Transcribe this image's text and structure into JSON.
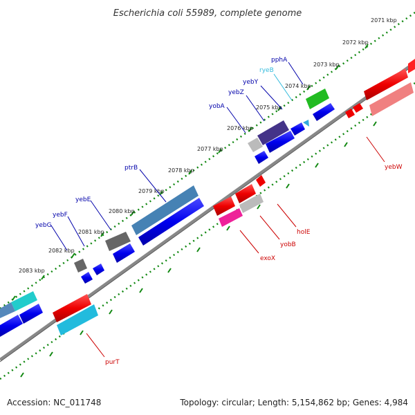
{
  "title": "Escherichia coli 55989, complete genome",
  "accession": "Accession: NC_011748",
  "topology": "Topology: circular; Length: 5,154,862 bp; Genes: 4,984",
  "colors": {
    "forward_label": "#0000aa",
    "reverse_label": "#cc0000",
    "rna_label": "#33bbdd",
    "tick": "#118811",
    "backbone": "#888888"
  },
  "kbp_labels": [
    "2071 kbp",
    "2072 kbp",
    "2073 kbp",
    "2074 kbp",
    "2075 kbp",
    "2076 kbp",
    "2077 kbp",
    "2078 kbp",
    "2079 kbp",
    "2080 kbp",
    "2081 kbp",
    "2082 kbp",
    "2083 kbp"
  ],
  "forward_genes": [
    "pphA",
    "ryeB",
    "yebY",
    "yebZ",
    "yobA",
    "ptrB",
    "yebE",
    "yebF",
    "yebG"
  ],
  "reverse_genes": [
    "yebW",
    "holE",
    "yobB",
    "exoX",
    "purT"
  ]
}
